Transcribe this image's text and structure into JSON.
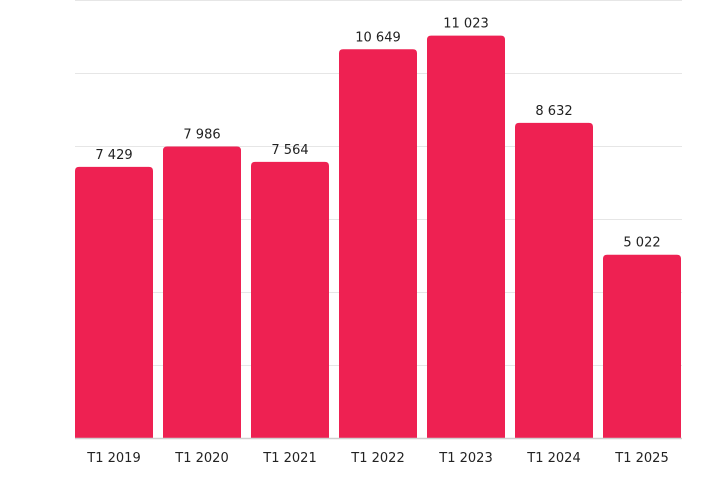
{
  "chart_data": {
    "type": "bar",
    "title": "",
    "xlabel": "",
    "ylabel": "",
    "categories": [
      "T1 2019",
      "T1 2020",
      "T1 2021",
      "T1 2022",
      "T1 2023",
      "T1 2024",
      "T1 2025"
    ],
    "values": [
      7429,
      7986,
      7564,
      10649,
      11023,
      8632,
      5022
    ],
    "value_labels": [
      "7 429",
      "7 986",
      "7 564",
      "10 649",
      "11 023",
      "8 632",
      "5 022"
    ],
    "ylim": [
      0,
      12000
    ],
    "y_gridlines": [
      2000,
      4000,
      6000,
      8000,
      10000,
      12000
    ],
    "grid": true,
    "y_axis_labels_shown": false,
    "bar_color": "#ee2152",
    "gridline_color": "#e6e6e6"
  }
}
